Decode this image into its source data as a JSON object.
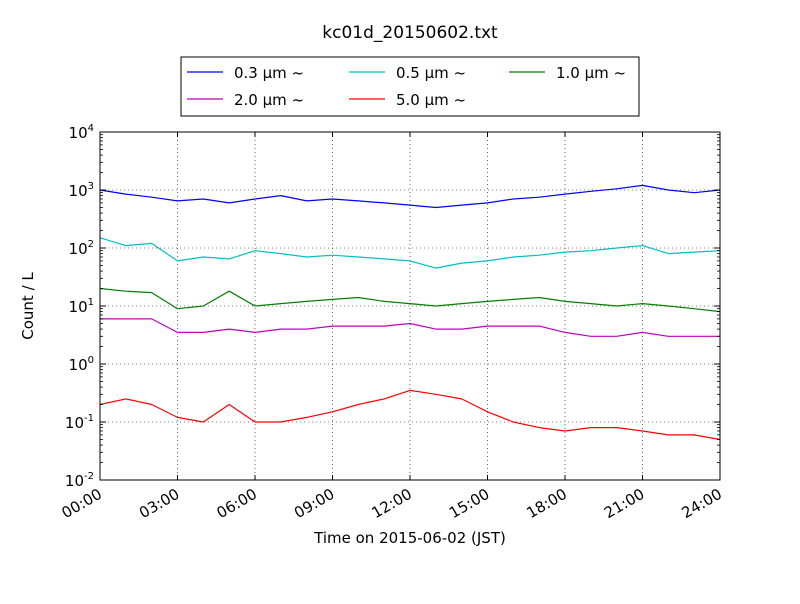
{
  "chart_data": {
    "type": "line",
    "title": "kc01d_20150602.txt",
    "xlabel": "Time on 2015-06-02 (JST)",
    "ylabel": "Count / L",
    "x_ticks": [
      "00:00",
      "03:00",
      "06:00",
      "09:00",
      "12:00",
      "15:00",
      "18:00",
      "21:00",
      "24:00"
    ],
    "y_ticks": [
      {
        "value": 0.01,
        "base": "10",
        "exp": "-2"
      },
      {
        "value": 0.1,
        "base": "10",
        "exp": "-1"
      },
      {
        "value": 1,
        "base": "10",
        "exp": "0"
      },
      {
        "value": 10,
        "base": "10",
        "exp": "1"
      },
      {
        "value": 100,
        "base": "10",
        "exp": "2"
      },
      {
        "value": 1000,
        "base": "10",
        "exp": "3"
      },
      {
        "value": 10000,
        "base": "10",
        "exp": "4"
      }
    ],
    "xlim": [
      "00:00",
      "24:00"
    ],
    "ylim": [
      0.01,
      10000
    ],
    "yscale": "log",
    "grid": true,
    "legend_position": "top-center",
    "series": [
      {
        "name": "0.3 μm ~",
        "color": "#0000ff",
        "x": [
          "00:00",
          "01:00",
          "02:00",
          "03:00",
          "04:00",
          "05:00",
          "06:00",
          "07:00",
          "08:00",
          "09:00",
          "10:00",
          "11:00",
          "12:00",
          "13:00",
          "14:00",
          "15:00",
          "16:00",
          "17:00",
          "18:00",
          "19:00",
          "20:00",
          "21:00",
          "22:00",
          "23:00",
          "24:00"
        ],
        "values": [
          1000,
          850,
          750,
          650,
          700,
          600,
          700,
          800,
          650,
          700,
          650,
          600,
          550,
          500,
          550,
          600,
          700,
          750,
          850,
          950,
          1050,
          1200,
          1000,
          900,
          1000
        ]
      },
      {
        "name": "0.5 μm ~",
        "color": "#00bfbf",
        "x": [
          "00:00",
          "01:00",
          "02:00",
          "03:00",
          "04:00",
          "05:00",
          "06:00",
          "07:00",
          "08:00",
          "09:00",
          "10:00",
          "11:00",
          "12:00",
          "13:00",
          "14:00",
          "15:00",
          "16:00",
          "17:00",
          "18:00",
          "19:00",
          "20:00",
          "21:00",
          "22:00",
          "23:00",
          "24:00"
        ],
        "values": [
          150,
          110,
          120,
          60,
          70,
          65,
          90,
          80,
          70,
          75,
          70,
          65,
          60,
          45,
          55,
          60,
          70,
          75,
          85,
          90,
          100,
          110,
          80,
          85,
          90
        ]
      },
      {
        "name": "1.0 μm ~",
        "color": "#008000",
        "x": [
          "00:00",
          "01:00",
          "02:00",
          "03:00",
          "04:00",
          "05:00",
          "06:00",
          "07:00",
          "08:00",
          "09:00",
          "10:00",
          "11:00",
          "12:00",
          "13:00",
          "14:00",
          "15:00",
          "16:00",
          "17:00",
          "18:00",
          "19:00",
          "20:00",
          "21:00",
          "22:00",
          "23:00",
          "24:00"
        ],
        "values": [
          20,
          18,
          17,
          9,
          10,
          18,
          10,
          11,
          12,
          13,
          14,
          12,
          11,
          10,
          11,
          12,
          13,
          14,
          12,
          11,
          10,
          11,
          10,
          9,
          8
        ]
      },
      {
        "name": "2.0 μm ~",
        "color": "#bf00bf",
        "x": [
          "00:00",
          "01:00",
          "02:00",
          "03:00",
          "04:00",
          "05:00",
          "06:00",
          "07:00",
          "08:00",
          "09:00",
          "10:00",
          "11:00",
          "12:00",
          "13:00",
          "14:00",
          "15:00",
          "16:00",
          "17:00",
          "18:00",
          "19:00",
          "20:00",
          "21:00",
          "22:00",
          "23:00",
          "24:00"
        ],
        "values": [
          6,
          6,
          6,
          3.5,
          3.5,
          4,
          3.5,
          4,
          4,
          4.5,
          4.5,
          4.5,
          5,
          4,
          4,
          4.5,
          4.5,
          4.5,
          3.5,
          3,
          3,
          3.5,
          3,
          3,
          3
        ]
      },
      {
        "name": "5.0 μm ~",
        "color": "#ff0000",
        "x": [
          "00:00",
          "01:00",
          "02:00",
          "03:00",
          "04:00",
          "05:00",
          "06:00",
          "07:00",
          "08:00",
          "09:00",
          "10:00",
          "11:00",
          "12:00",
          "13:00",
          "14:00",
          "15:00",
          "16:00",
          "17:00",
          "18:00",
          "19:00",
          "20:00",
          "21:00",
          "22:00",
          "23:00",
          "24:00"
        ],
        "values": [
          0.2,
          0.25,
          0.2,
          0.12,
          0.1,
          0.2,
          0.1,
          0.1,
          0.12,
          0.15,
          0.2,
          0.25,
          0.35,
          0.3,
          0.25,
          0.15,
          0.1,
          0.08,
          0.07,
          0.08,
          0.08,
          0.07,
          0.06,
          0.06,
          0.05
        ]
      }
    ]
  }
}
